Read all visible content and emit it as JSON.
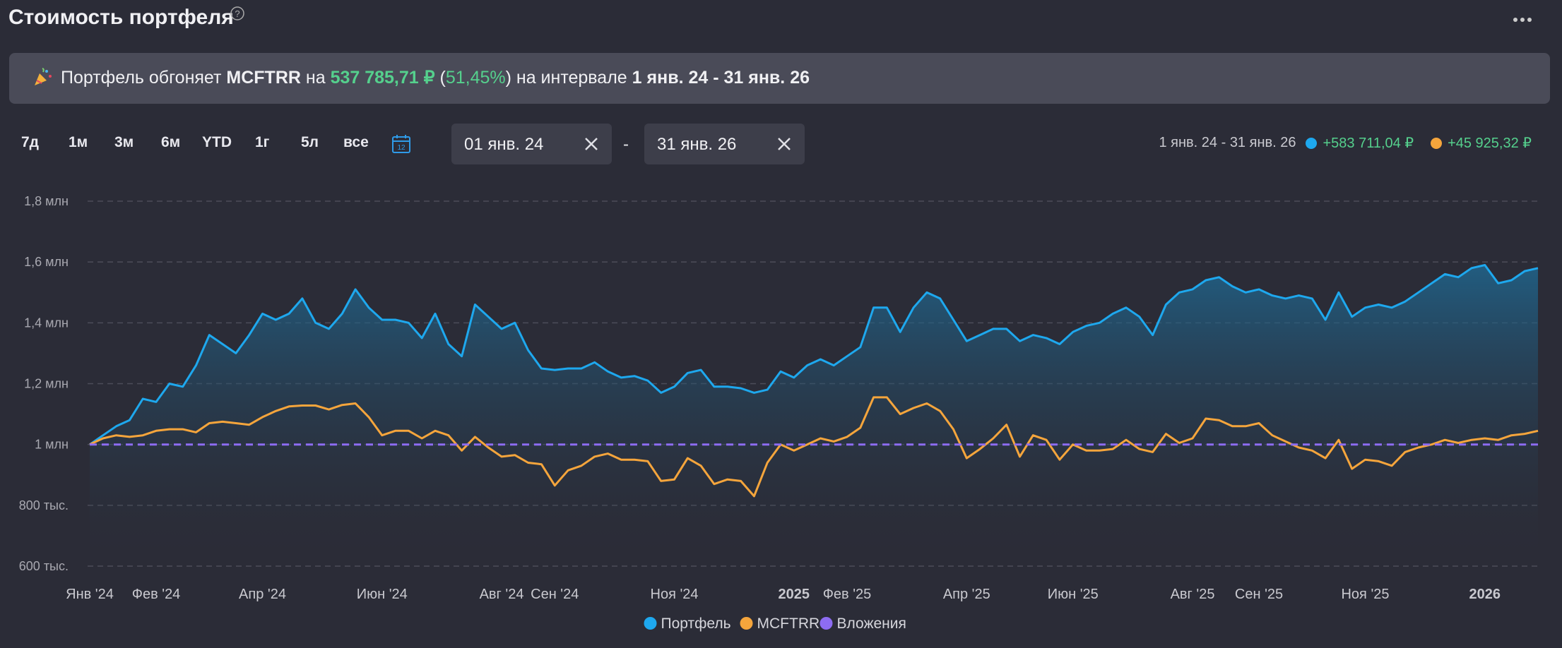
{
  "header": {
    "title": "Стоимость портфеля"
  },
  "banner": {
    "lead": "Портфель обгоняет",
    "benchmark": "MCFTRR",
    "by": "на",
    "amount": "537 785,71 ₽",
    "open": "(",
    "percent": "51,45%",
    "close": ")",
    "interval": "на интервале",
    "range": "1 янв. 24 - 31 янв. 26"
  },
  "controls": {
    "periods": [
      "7д",
      "1м",
      "3м",
      "6м",
      "YTD",
      "1г",
      "5л",
      "все"
    ],
    "date_from": "01 янв. 24",
    "separator": "-",
    "date_to": "31 янв. 26"
  },
  "summary": {
    "range": "1 янв. 24 - 31 янв. 26",
    "changes": [
      "+583 711,04 ₽",
      "+45 925,32 ₽"
    ]
  },
  "chart_data": {
    "type": "line",
    "categories": [
      "Янв '24",
      null,
      null,
      null,
      null,
      "Фев '24",
      null,
      null,
      null,
      null,
      null,
      null,
      null,
      "Апр '24",
      null,
      null,
      null,
      null,
      null,
      null,
      null,
      null,
      "Июн '24",
      null,
      null,
      null,
      null,
      null,
      null,
      null,
      null,
      "Авг '24",
      null,
      null,
      null,
      "Сен '24",
      null,
      null,
      null,
      null,
      null,
      null,
      null,
      null,
      "Ноя '24",
      null,
      null,
      null,
      null,
      null,
      null,
      null,
      null,
      "2025",
      null,
      null,
      null,
      "Фев '25",
      null,
      null,
      null,
      null,
      null,
      null,
      null,
      null,
      "Апр '25",
      null,
      null,
      null,
      null,
      null,
      null,
      null,
      "Июн '25",
      null,
      null,
      null,
      null,
      null,
      null,
      null,
      null,
      "Авг '25",
      null,
      null,
      null,
      null,
      "Сен '25",
      null,
      null,
      null,
      null,
      null,
      null,
      null,
      "Ноя '25",
      null,
      null,
      null,
      null,
      null,
      null,
      null,
      null,
      "2026",
      null,
      null,
      null,
      null
    ],
    "series": [
      {
        "name": "Портфель",
        "color": "#1ea8ee",
        "area": true,
        "values": [
          1000000,
          1030000,
          1060000,
          1080000,
          1150000,
          1140000,
          1200000,
          1190000,
          1260000,
          1360000,
          1330000,
          1300000,
          1360000,
          1430000,
          1410000,
          1430000,
          1480000,
          1400000,
          1380000,
          1430000,
          1510000,
          1450000,
          1410000,
          1410000,
          1400000,
          1350000,
          1430000,
          1330000,
          1290000,
          1460000,
          1420000,
          1380000,
          1400000,
          1310000,
          1250000,
          1245000,
          1250000,
          1250000,
          1270000,
          1240000,
          1220000,
          1225000,
          1210000,
          1170000,
          1190000,
          1235000,
          1245000,
          1190000,
          1190000,
          1185000,
          1170000,
          1180000,
          1240000,
          1220000,
          1260000,
          1280000,
          1260000,
          1290000,
          1320000,
          1450000,
          1450000,
          1370000,
          1450000,
          1500000,
          1480000,
          1410000,
          1340000,
          1360000,
          1380000,
          1380000,
          1340000,
          1360000,
          1350000,
          1330000,
          1370000,
          1390000,
          1400000,
          1430000,
          1450000,
          1420000,
          1360000,
          1460000,
          1500000,
          1510000,
          1540000,
          1550000,
          1520000,
          1500000,
          1510000,
          1490000,
          1480000,
          1490000,
          1480000,
          1410000,
          1500000,
          1420000,
          1450000,
          1460000,
          1450000,
          1470000,
          1500000,
          1530000,
          1560000,
          1550000,
          1580000,
          1590000,
          1530000,
          1540000,
          1570000,
          1580000
        ]
      },
      {
        "name": "MCFTRR",
        "color": "#f5a53c",
        "values": [
          1000000,
          1020000,
          1030000,
          1025000,
          1030000,
          1045000,
          1050000,
          1050000,
          1040000,
          1070000,
          1075000,
          1070000,
          1065000,
          1090000,
          1110000,
          1125000,
          1128000,
          1128000,
          1115000,
          1130000,
          1135000,
          1090000,
          1030000,
          1045000,
          1045000,
          1020000,
          1045000,
          1030000,
          980000,
          1025000,
          990000,
          960000,
          965000,
          940000,
          935000,
          865000,
          915000,
          930000,
          960000,
          970000,
          950000,
          950000,
          945000,
          880000,
          885000,
          955000,
          930000,
          870000,
          885000,
          880000,
          830000,
          940000,
          1000000,
          980000,
          1000000,
          1020000,
          1010000,
          1025000,
          1055000,
          1155000,
          1155000,
          1100000,
          1120000,
          1135000,
          1110000,
          1050000,
          955000,
          985000,
          1020000,
          1065000,
          960000,
          1030000,
          1015000,
          950000,
          1000000,
          980000,
          980000,
          985000,
          1015000,
          985000,
          975000,
          1035000,
          1005000,
          1020000,
          1085000,
          1080000,
          1060000,
          1060000,
          1070000,
          1030000,
          1010000,
          990000,
          980000,
          955000,
          1015000,
          920000,
          950000,
          945000,
          930000,
          975000,
          990000,
          1000000,
          1015000,
          1005000,
          1015000,
          1020000,
          1015000,
          1030000,
          1035000,
          1045000
        ]
      },
      {
        "name": "Вложения",
        "color": "#8d6cf2",
        "dashed": true,
        "values": [
          1000000,
          1000000,
          1000000,
          1000000,
          1000000,
          1000000,
          1000000,
          1000000,
          1000000,
          1000000,
          1000000,
          1000000,
          1000000,
          1000000,
          1000000,
          1000000,
          1000000,
          1000000,
          1000000,
          1000000,
          1000000,
          1000000,
          1000000,
          1000000,
          1000000,
          1000000,
          1000000,
          1000000,
          1000000,
          1000000,
          1000000,
          1000000,
          1000000,
          1000000,
          1000000,
          1000000,
          1000000,
          1000000,
          1000000,
          1000000,
          1000000,
          1000000,
          1000000,
          1000000,
          1000000,
          1000000,
          1000000,
          1000000,
          1000000,
          1000000,
          1000000,
          1000000,
          1000000,
          1000000,
          1000000,
          1000000,
          1000000,
          1000000,
          1000000,
          1000000,
          1000000,
          1000000,
          1000000,
          1000000,
          1000000,
          1000000,
          1000000,
          1000000,
          1000000,
          1000000,
          1000000,
          1000000,
          1000000,
          1000000,
          1000000,
          1000000,
          1000000,
          1000000,
          1000000,
          1000000,
          1000000,
          1000000,
          1000000,
          1000000,
          1000000,
          1000000,
          1000000,
          1000000,
          1000000,
          1000000,
          1000000,
          1000000,
          1000000,
          1000000,
          1000000,
          1000000,
          1000000,
          1000000,
          1000000,
          1000000,
          1000000,
          1000000,
          1000000,
          1000000,
          1000000,
          1000000,
          1000000,
          1000000,
          1000000,
          1000000
        ]
      }
    ],
    "ylim": [
      600000,
      1800000
    ],
    "yticks": [
      {
        "value": 600000,
        "label": "600 тыс."
      },
      {
        "value": 800000,
        "label": "800 тыс."
      },
      {
        "value": 1000000,
        "label": "1 млн"
      },
      {
        "value": 1200000,
        "label": "1,2 млн"
      },
      {
        "value": 1400000,
        "label": "1,4 млн"
      },
      {
        "value": 1600000,
        "label": "1,6 млн"
      },
      {
        "value": 1800000,
        "label": "1,8 млн"
      }
    ],
    "grid": true,
    "legend": "bottom"
  }
}
